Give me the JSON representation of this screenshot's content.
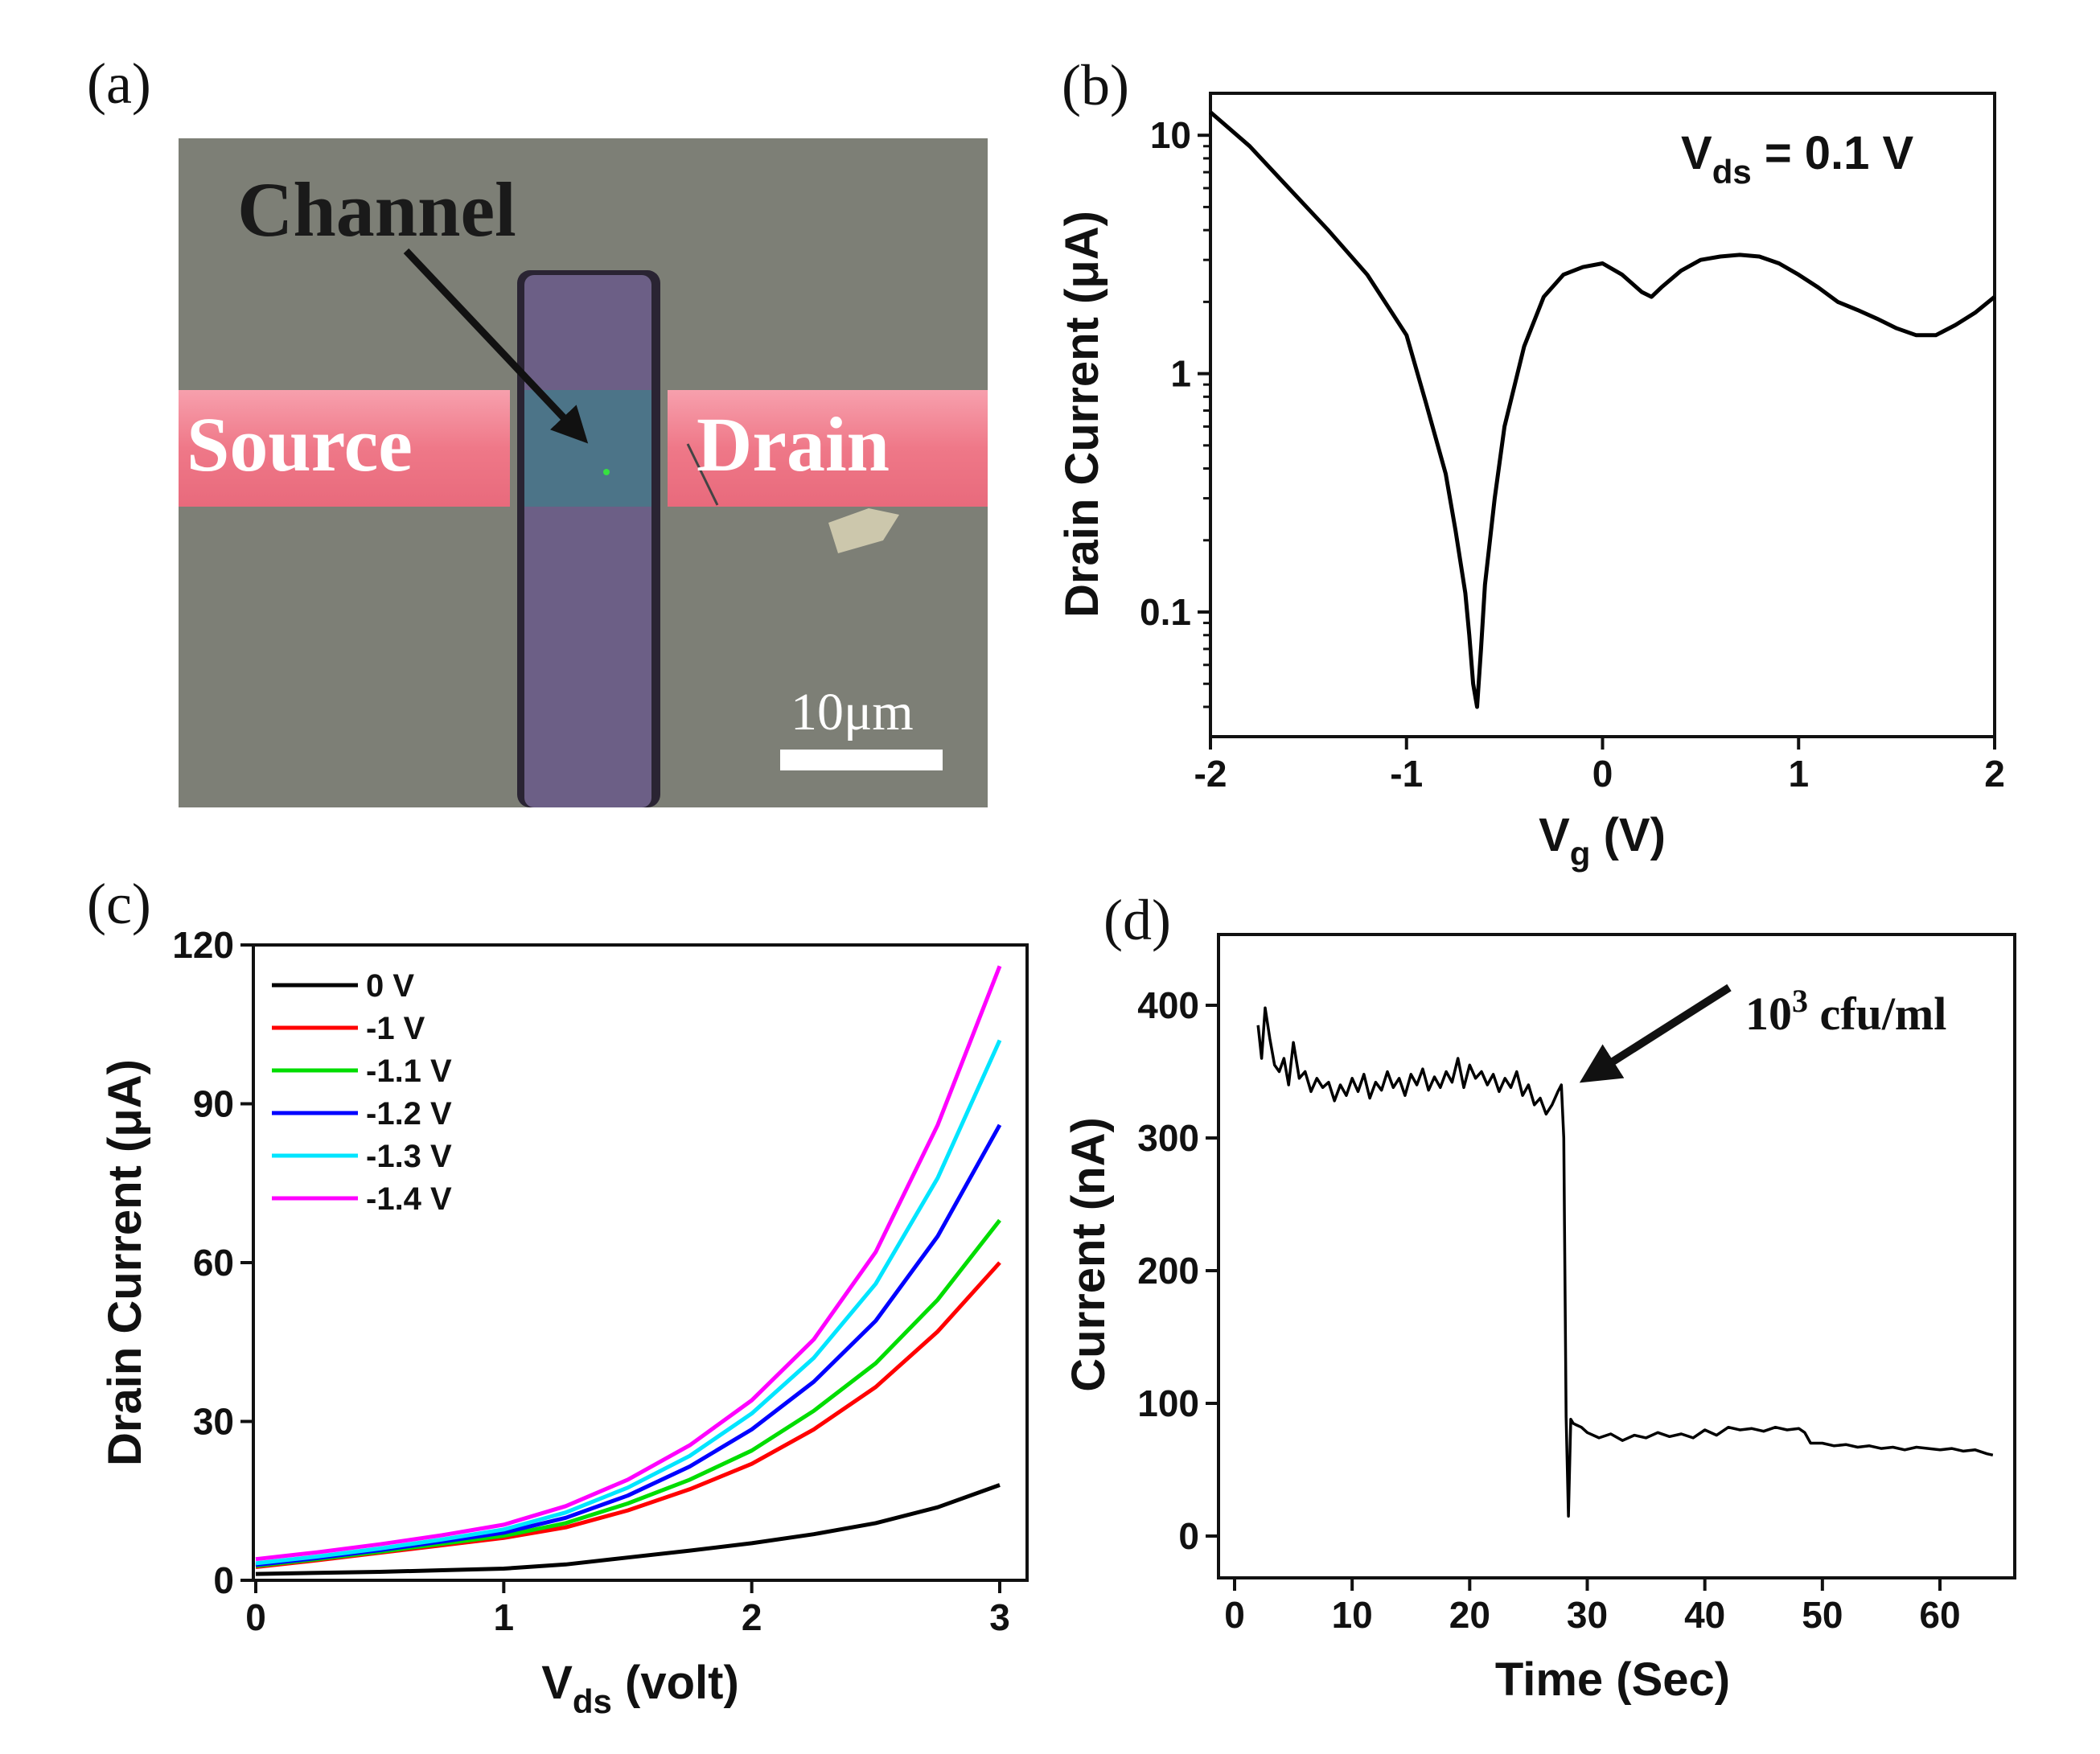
{
  "panels": {
    "a": {
      "letter": "(a)"
    },
    "b": {
      "letter": "(b)"
    },
    "c": {
      "letter": "(c)"
    },
    "d": {
      "letter": "(d)"
    }
  },
  "micrograph": {
    "labels": {
      "channel": "Channel",
      "source": "Source",
      "drain": "Drain",
      "scale": "10μm"
    },
    "colors": {
      "background": "#7d7f76",
      "electrode": "#f07a8a",
      "channel_strip": "#6c5f86",
      "overlap": "#4c7488"
    }
  },
  "chart_data": [
    {
      "id": "b",
      "type": "line",
      "title": "",
      "xlabel": "V",
      "xlabel_sub": "g",
      "xlabel_unit": " (V)",
      "ylabel": "Drain Current (μA)",
      "yscale": "log",
      "xlim": [
        -2,
        2
      ],
      "ylim": [
        0.03,
        15
      ],
      "xticks": [
        -2,
        -1,
        0,
        1,
        2
      ],
      "xtick_labels": [
        "-2",
        "-1",
        "0",
        "1",
        "2"
      ],
      "yticks": [
        0.1,
        1,
        10
      ],
      "ytick_labels": [
        "0.1",
        "1",
        "10"
      ],
      "annotation": {
        "main": "V",
        "sub": "ds",
        "rest": " = 0.1 V"
      },
      "series": [
        {
          "name": "Vds = 0.1 V",
          "color": "#000000",
          "x": [
            -2.0,
            -1.8,
            -1.6,
            -1.4,
            -1.2,
            -1.0,
            -0.9,
            -0.8,
            -0.75,
            -0.7,
            -0.68,
            -0.66,
            -0.64,
            -0.62,
            -0.6,
            -0.55,
            -0.5,
            -0.4,
            -0.3,
            -0.2,
            -0.1,
            0.0,
            0.1,
            0.2,
            0.25,
            0.3,
            0.4,
            0.5,
            0.6,
            0.7,
            0.8,
            0.9,
            1.0,
            1.1,
            1.2,
            1.3,
            1.4,
            1.5,
            1.6,
            1.7,
            1.8,
            1.9,
            2.0
          ],
          "y": [
            12.5,
            9.0,
            6.0,
            4.0,
            2.6,
            1.45,
            0.75,
            0.38,
            0.22,
            0.12,
            0.08,
            0.05,
            0.04,
            0.07,
            0.13,
            0.3,
            0.6,
            1.3,
            2.1,
            2.6,
            2.8,
            2.9,
            2.6,
            2.2,
            2.1,
            2.3,
            2.7,
            3.0,
            3.1,
            3.15,
            3.1,
            2.9,
            2.6,
            2.3,
            2.0,
            1.85,
            1.7,
            1.55,
            1.45,
            1.45,
            1.6,
            1.8,
            2.1
          ]
        }
      ]
    },
    {
      "id": "c",
      "type": "line",
      "title": "",
      "xlabel": "V",
      "xlabel_sub": "ds",
      "xlabel_unit": " (volt)",
      "ylabel": "Drain Current (μA)",
      "xlim": [
        0,
        3.1
      ],
      "ylim": [
        0,
        120
      ],
      "xticks": [
        0,
        1,
        2,
        3
      ],
      "xtick_labels": [
        "0",
        "1",
        "2",
        "3"
      ],
      "yticks": [
        0,
        30,
        60,
        90,
        120
      ],
      "ytick_labels": [
        "0",
        "30",
        "60",
        "90",
        "120"
      ],
      "legend_position": "top-left",
      "x": [
        0,
        0.25,
        0.5,
        0.75,
        1.0,
        1.25,
        1.5,
        1.75,
        2.0,
        2.25,
        2.5,
        2.75,
        3.0
      ],
      "series": [
        {
          "name": "0 V",
          "color": "#000000",
          "values": [
            1.2,
            1.4,
            1.6,
            1.9,
            2.2,
            3.0,
            4.3,
            5.6,
            7.0,
            8.7,
            10.8,
            13.8,
            18.0
          ]
        },
        {
          "name": "-1 V",
          "color": "#ff0000",
          "values": [
            2.5,
            3.8,
            5.2,
            6.6,
            8.0,
            10.0,
            13.2,
            17.2,
            22.0,
            28.5,
            36.5,
            47.0,
            60.0
          ]
        },
        {
          "name": "-1.1 V",
          "color": "#00dd00",
          "values": [
            2.7,
            4.0,
            5.4,
            6.9,
            8.4,
            10.8,
            14.5,
            19.0,
            24.5,
            32.0,
            41.0,
            53.0,
            68.0
          ]
        },
        {
          "name": "-1.2 V",
          "color": "#0000ff",
          "values": [
            2.9,
            4.2,
            5.7,
            7.3,
            9.0,
            11.8,
            16.0,
            21.5,
            28.5,
            37.5,
            49.0,
            65.0,
            86.0
          ]
        },
        {
          "name": "-1.3 V",
          "color": "#00e5ff",
          "values": [
            3.2,
            4.5,
            6.0,
            7.7,
            9.6,
            12.8,
            17.5,
            23.5,
            31.5,
            42.0,
            56.0,
            76.0,
            102.0
          ]
        },
        {
          "name": "-1.4 V",
          "color": "#ff00ff",
          "values": [
            4.0,
            5.3,
            6.8,
            8.5,
            10.5,
            14.0,
            19.0,
            25.5,
            34.0,
            45.5,
            62.0,
            86.0,
            116.0
          ]
        }
      ]
    },
    {
      "id": "d",
      "type": "line",
      "title": "",
      "xlabel": "Time (Sec)",
      "ylabel": "Current (nA)",
      "xlim": [
        -1,
        66
      ],
      "ylim": [
        -25,
        450
      ],
      "xticks": [
        0,
        10,
        20,
        30,
        40,
        50,
        60
      ],
      "xtick_labels": [
        "0",
        "10",
        "20",
        "30",
        "40",
        "50",
        "60"
      ],
      "yticks": [
        0,
        100,
        200,
        300,
        400
      ],
      "ytick_labels": [
        "0",
        "100",
        "200",
        "300",
        "400"
      ],
      "annotation": {
        "main": "10",
        "sup": "3",
        "rest": " cfu/ml",
        "points_to": [
          28,
          340
        ]
      },
      "series": [
        {
          "name": "current",
          "color": "#000000",
          "x": [
            2.0,
            2.3,
            2.6,
            3.0,
            3.4,
            3.8,
            4.2,
            4.6,
            5.0,
            5.5,
            6.0,
            6.5,
            7.0,
            7.5,
            8.0,
            8.5,
            9.0,
            9.5,
            10.0,
            10.5,
            11.0,
            11.5,
            12.0,
            12.5,
            13.0,
            13.5,
            14.0,
            14.5,
            15.0,
            15.5,
            16.0,
            16.5,
            17.0,
            17.5,
            18.0,
            18.5,
            19.0,
            19.5,
            20.0,
            20.5,
            21.0,
            21.5,
            22.0,
            22.5,
            23.0,
            23.5,
            24.0,
            24.5,
            25.0,
            25.5,
            26.0,
            26.5,
            27.0,
            27.5,
            27.8,
            28.0,
            28.2,
            28.4,
            28.6,
            28.8,
            29.0,
            29.5,
            30.0,
            31.0,
            32.0,
            33.0,
            34.0,
            35.0,
            36.0,
            37.0,
            38.0,
            39.0,
            40.0,
            41.0,
            42.0,
            43.0,
            44.0,
            45.0,
            46.0,
            47.0,
            48.0,
            48.5,
            49.0,
            50.0,
            51.0,
            52.0,
            53.0,
            54.0,
            55.0,
            56.0,
            57.0,
            58.0,
            59.0,
            60.0,
            61.0,
            62.0,
            63.0,
            64.0,
            64.5
          ],
          "y": [
            385,
            360,
            398,
            375,
            355,
            350,
            360,
            340,
            372,
            345,
            350,
            335,
            345,
            338,
            342,
            328,
            340,
            332,
            345,
            335,
            348,
            330,
            342,
            336,
            350,
            338,
            345,
            332,
            348,
            340,
            352,
            336,
            346,
            338,
            350,
            342,
            360,
            338,
            355,
            345,
            350,
            340,
            348,
            335,
            345,
            338,
            350,
            332,
            340,
            325,
            330,
            318,
            325,
            335,
            340,
            300,
            90,
            15,
            88,
            85,
            84,
            82,
            78,
            74,
            77,
            72,
            76,
            74,
            78,
            75,
            77,
            74,
            80,
            76,
            82,
            80,
            81,
            79,
            82,
            80,
            81,
            78,
            70,
            70,
            68,
            69,
            67,
            68,
            66,
            67,
            65,
            67,
            66,
            65,
            66,
            64,
            65,
            62,
            61
          ]
        }
      ]
    }
  ]
}
